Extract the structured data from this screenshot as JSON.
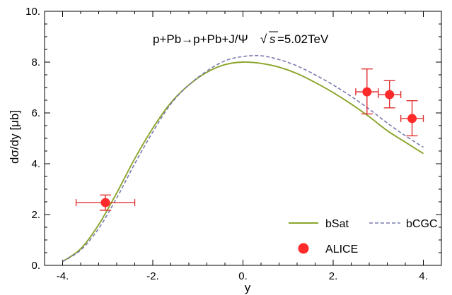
{
  "chart_data": {
    "type": "line",
    "annotation": "p+Pb→p+Pb+J/Ψ",
    "annotation_energy": "=5.02TeV",
    "annotation_sqrt": "s",
    "xlabel": "y",
    "ylabel": "dσ/dy  [μb]",
    "xlim": [
      -4.4,
      4.4
    ],
    "ylim": [
      0,
      10
    ],
    "x_ticks": [
      -4,
      -2,
      0,
      2,
      4
    ],
    "x_tick_labels": [
      "-4.",
      "-2.",
      "0.",
      "2.",
      "4."
    ],
    "y_ticks": [
      0,
      2,
      4,
      6,
      8,
      10
    ],
    "y_tick_labels": [
      "0.",
      "2.",
      "4.",
      "6.",
      "8.",
      "10."
    ],
    "legend_placement": "bottom-right",
    "colors": {
      "bsat": "#8aa52b",
      "bcgc": "#7a7ab0",
      "alice": "#ff2a2a",
      "alice_err": "#e03030"
    },
    "series": [
      {
        "name": "bSat",
        "style": "solid",
        "x": [
          -4.0,
          -3.6,
          -3.2,
          -2.8,
          -2.4,
          -2.0,
          -1.6,
          -1.2,
          -0.8,
          -0.4,
          0.0,
          0.4,
          0.8,
          1.2,
          1.6,
          2.0,
          2.4,
          2.8,
          3.2,
          3.6,
          4.0
        ],
        "y": [
          0.15,
          0.65,
          1.6,
          2.85,
          4.2,
          5.4,
          6.4,
          7.1,
          7.6,
          7.9,
          8.0,
          7.95,
          7.8,
          7.55,
          7.2,
          6.8,
          6.35,
          5.85,
          5.3,
          4.85,
          4.4
        ]
      },
      {
        "name": "bCGC",
        "style": "dashed",
        "x": [
          -4.0,
          -3.6,
          -3.2,
          -2.8,
          -2.4,
          -2.0,
          -1.6,
          -1.2,
          -0.8,
          -0.4,
          0.0,
          0.4,
          0.8,
          1.2,
          1.6,
          2.0,
          2.4,
          2.8,
          3.2,
          3.6,
          4.0
        ],
        "y": [
          0.15,
          0.6,
          1.45,
          2.65,
          4.0,
          5.25,
          6.35,
          7.1,
          7.65,
          8.05,
          8.22,
          8.25,
          8.1,
          7.85,
          7.5,
          7.1,
          6.65,
          6.15,
          5.6,
          5.1,
          4.65
        ]
      }
    ],
    "points": {
      "name": "ALICE",
      "x": [
        -3.05,
        2.75,
        3.25,
        3.75
      ],
      "y": [
        2.47,
        6.83,
        6.72,
        5.78
      ],
      "xerr": [
        0.65,
        0.25,
        0.25,
        0.25
      ],
      "yerr_low": [
        0.3,
        0.87,
        0.52,
        0.68
      ],
      "yerr_high": [
        0.3,
        0.9,
        0.55,
        0.7
      ]
    }
  }
}
